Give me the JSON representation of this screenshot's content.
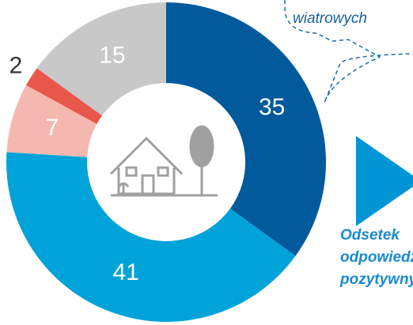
{
  "chart_data": {
    "type": "donut",
    "categories": [
      null,
      null,
      null,
      null,
      null
    ],
    "values": [
      35,
      41,
      7,
      2,
      15
    ],
    "colors": [
      "#005a9c",
      "#00a3d9",
      "#f4b8b0",
      "#e8584a",
      "#c8c8c8"
    ],
    "annotations": [
      "wiatrowych",
      "Odsetek",
      "odpowiedzi",
      "pozytywnych"
    ]
  }
}
